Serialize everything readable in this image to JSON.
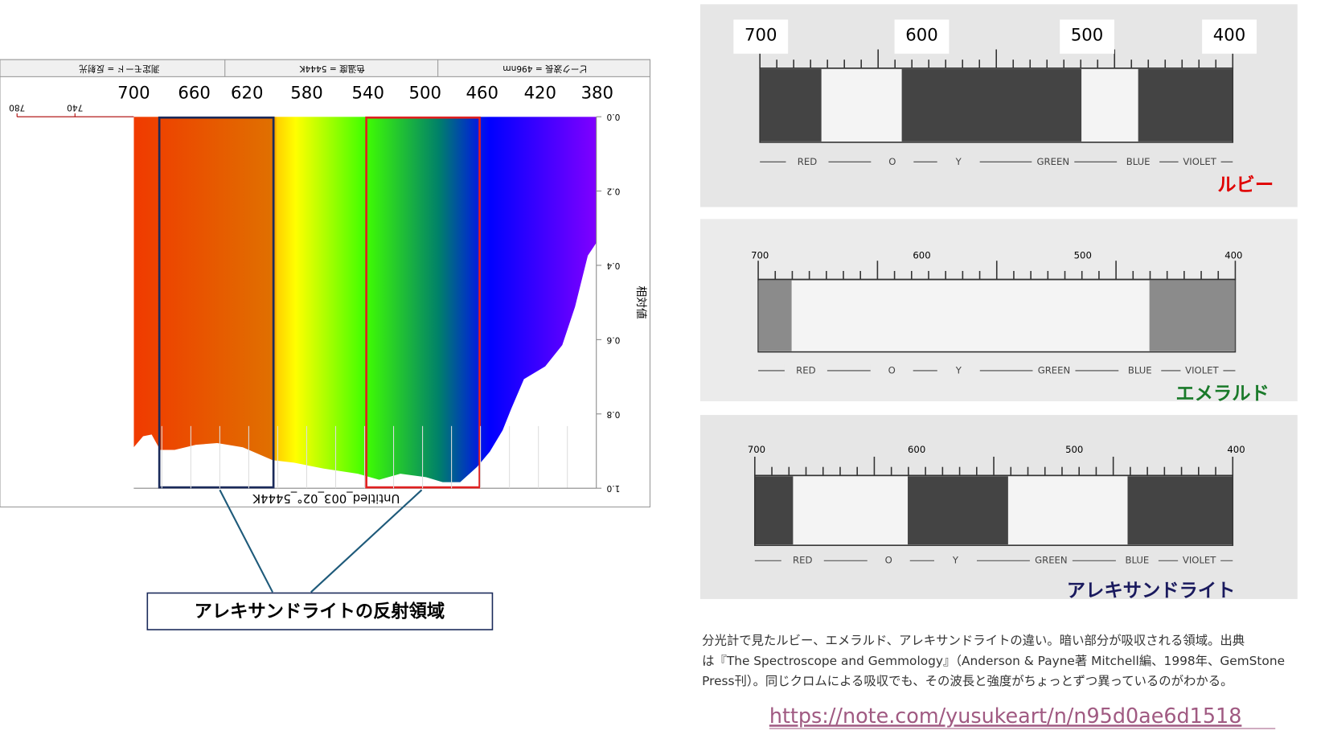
{
  "left_panel": {
    "header": [
      "ピーク波長 = 496nm",
      "色温度 = 5444K",
      "測定モード = 反射光"
    ],
    "wavelengths": [
      "700",
      "660",
      "620",
      "580",
      "540",
      "500",
      "460",
      "420",
      "380"
    ],
    "mirrored_scale": [
      "780",
      "740"
    ],
    "right_axis": {
      "label": "相対値",
      "ticks": [
        "0.0",
        "0.2",
        "0.4",
        "0.6",
        "0.8",
        "1.0"
      ]
    },
    "footer": "Untitled_003_02°_5444K"
  },
  "callout": "アレキサンドライトの反射領域",
  "photos": [
    {
      "numbers": [
        "700",
        "600",
        "500",
        "400"
      ],
      "bands": [
        "RED",
        "O",
        "Y",
        "GREEN",
        "BLUE",
        "VIOLET"
      ],
      "name": "ルビー",
      "color": "#e00000"
    },
    {
      "numbers": [
        "700",
        "600",
        "500",
        "400"
      ],
      "bands": [
        "RED",
        "O",
        "Y",
        "GREEN",
        "BLUE",
        "VIOLET"
      ],
      "name": "エメラルド",
      "color": "#1a7a2a"
    },
    {
      "numbers": [
        "700",
        "600",
        "500",
        "400"
      ],
      "bands": [
        "RED",
        "O",
        "Y",
        "GREEN",
        "BLUE",
        "VIOLET"
      ],
      "name": "アレキサンドライト",
      "color": "#1a1a5e"
    }
  ],
  "caption": [
    "分光計で見たルビー、エメラルド、アレキサンドライトの違い。暗い部分が吸収される領域。出典",
    "は『The Spectroscope and Gemmology』（Anderson & Payne著 Mitchell編、1998年、GemStone",
    "Press刊）。同じクロムによる吸収でも、その波長と強度がちょっとずつ異っているのがわかる。"
  ],
  "url": "https://note.com/yusukeart/n/n95d0ae6d1518"
}
